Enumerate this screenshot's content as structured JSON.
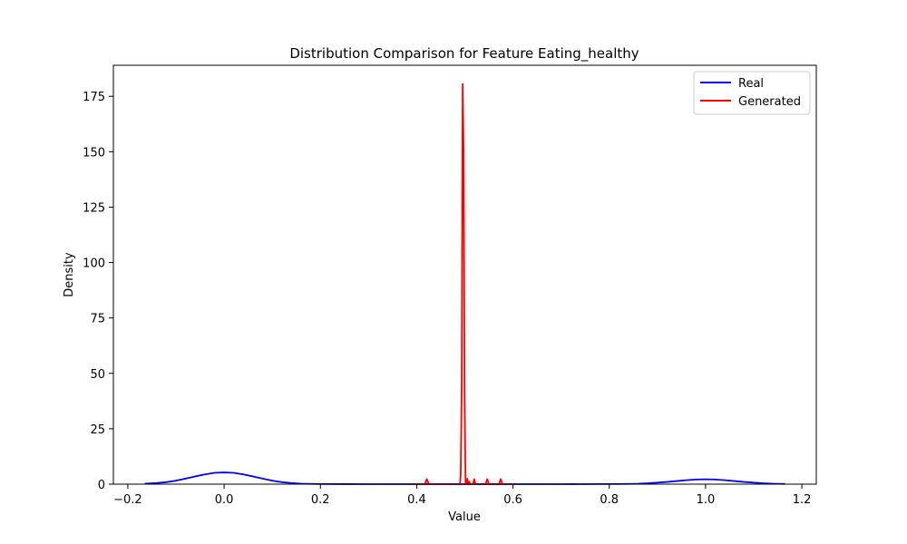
{
  "chart_data": {
    "type": "line",
    "title": "Distribution Comparison for Feature Eating_healthy",
    "xlabel": "Value",
    "ylabel": "Density",
    "xlim": [
      -0.23,
      1.23
    ],
    "ylim": [
      0,
      189
    ],
    "xticks": [
      -0.2,
      0.0,
      0.2,
      0.4,
      0.6,
      0.8,
      1.0,
      1.2
    ],
    "xtick_labels": [
      "−0.2",
      "0.0",
      "0.2",
      "0.4",
      "0.6",
      "0.8",
      "1.0",
      "1.2"
    ],
    "yticks": [
      0,
      25,
      50,
      75,
      100,
      125,
      150,
      175
    ],
    "ytick_labels": [
      "0",
      "25",
      "50",
      "75",
      "100",
      "125",
      "150",
      "175"
    ],
    "grid": false,
    "legend_position": "top-right",
    "series": [
      {
        "name": "Real",
        "color": "#0000ff",
        "x": [
          -0.165,
          -0.14,
          -0.12,
          -0.1,
          -0.08,
          -0.06,
          -0.04,
          -0.02,
          0.0,
          0.02,
          0.04,
          0.06,
          0.08,
          0.1,
          0.12,
          0.14,
          0.16,
          0.2,
          0.3,
          0.5,
          0.7,
          0.8,
          0.84,
          0.86,
          0.88,
          0.9,
          0.92,
          0.94,
          0.96,
          0.98,
          1.0,
          1.02,
          1.04,
          1.06,
          1.08,
          1.1,
          1.12,
          1.14,
          1.165
        ],
        "y": [
          0.2,
          0.5,
          0.9,
          1.6,
          2.5,
          3.5,
          4.4,
          5.1,
          5.3,
          5.1,
          4.4,
          3.5,
          2.5,
          1.6,
          0.9,
          0.5,
          0.2,
          0.05,
          0.0,
          0.0,
          0.0,
          0.05,
          0.1,
          0.2,
          0.4,
          0.7,
          1.0,
          1.4,
          1.8,
          2.1,
          2.2,
          2.1,
          1.8,
          1.4,
          1.0,
          0.7,
          0.4,
          0.2,
          0.1
        ]
      },
      {
        "name": "Generated",
        "color": "#ff0000",
        "x": [
          0.39,
          0.417,
          0.421,
          0.425,
          0.49,
          0.4915,
          0.4935,
          0.4955,
          0.4975,
          0.4995,
          0.5015,
          0.503,
          0.505,
          0.507,
          0.509,
          0.511,
          0.517,
          0.5195,
          0.522,
          0.543,
          0.5465,
          0.55,
          0.571,
          0.5745,
          0.578,
          0.6
        ],
        "y": [
          0.0,
          0.0,
          2.3,
          0.0,
          0.0,
          5.0,
          45.0,
          180.5,
          150.0,
          40.0,
          0.0,
          0.0,
          2.5,
          0.0,
          1.2,
          0.0,
          0.0,
          2.3,
          0.0,
          0.0,
          2.3,
          0.0,
          0.0,
          2.3,
          0.0,
          0.0
        ]
      }
    ]
  }
}
